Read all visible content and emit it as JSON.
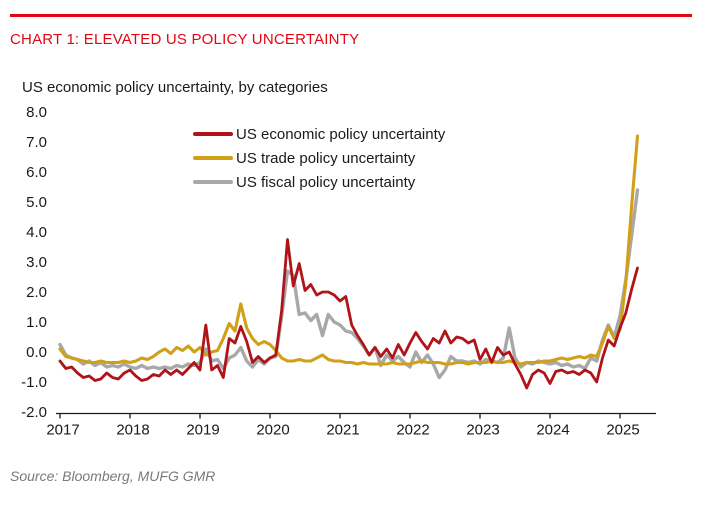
{
  "header": {
    "title": "CHART 1: ELEVATED US POLICY UNCERTAINTY"
  },
  "footer": {
    "source": "Source: Bloomberg, MUFG GMR"
  },
  "colors": {
    "brand_red": "#e30613",
    "series_economic": "#b01318",
    "series_trade": "#d1a019",
    "series_fiscal": "#a8a8a8",
    "axis": "#1a1a1a",
    "source_text": "#7a7a7a"
  },
  "chart_data": {
    "type": "line",
    "title": "US economic policy uncertainty, by categories",
    "xlabel": "",
    "ylabel": "",
    "x_unit": "monthly, Jan 2017 - Apr 2025",
    "x_tick_labels": [
      "2017",
      "2018",
      "2019",
      "2020",
      "2021",
      "2022",
      "2023",
      "2024",
      "2025"
    ],
    "y_ticks": [
      8.0,
      7.0,
      6.0,
      5.0,
      4.0,
      3.0,
      2.0,
      1.0,
      0.0,
      -1.0,
      -2.0
    ],
    "ylim": [
      -2.0,
      8.0
    ],
    "grid": false,
    "legend_position": "inside-top-left",
    "series": [
      {
        "name": "US economic policy uncertainty",
        "color": "#b01318",
        "values": [
          -0.3,
          -0.55,
          -0.5,
          -0.7,
          -0.85,
          -0.8,
          -0.95,
          -0.9,
          -0.7,
          -0.85,
          -0.9,
          -0.7,
          -0.6,
          -0.8,
          -0.95,
          -0.9,
          -0.75,
          -0.8,
          -0.6,
          -0.75,
          -0.6,
          -0.75,
          -0.55,
          -0.35,
          -0.6,
          0.9,
          -0.6,
          -0.45,
          -0.85,
          0.45,
          0.3,
          0.85,
          0.35,
          -0.35,
          -0.15,
          -0.35,
          -0.2,
          -0.1,
          1.4,
          3.75,
          2.2,
          2.95,
          2.05,
          2.25,
          1.9,
          2.0,
          2.0,
          1.9,
          1.7,
          1.85,
          0.9,
          0.55,
          0.25,
          -0.1,
          0.15,
          -0.15,
          0.1,
          -0.2,
          0.25,
          -0.1,
          0.3,
          0.65,
          0.35,
          0.1,
          0.45,
          0.3,
          0.7,
          0.3,
          0.5,
          0.45,
          0.3,
          0.4,
          -0.25,
          0.1,
          -0.35,
          0.15,
          -0.1,
          0.0,
          -0.4,
          -0.75,
          -1.2,
          -0.75,
          -0.6,
          -0.7,
          -1.05,
          -0.65,
          -0.6,
          -0.7,
          -0.65,
          -0.75,
          -0.6,
          -0.7,
          -1.0,
          -0.2,
          0.4,
          0.2,
          0.8,
          1.3,
          2.1,
          2.8
        ]
      },
      {
        "name": "US trade policy uncertainty",
        "color": "#d1a019",
        "values": [
          0.1,
          -0.15,
          -0.2,
          -0.25,
          -0.3,
          -0.35,
          -0.35,
          -0.3,
          -0.35,
          -0.35,
          -0.35,
          -0.3,
          -0.35,
          -0.3,
          -0.2,
          -0.25,
          -0.15,
          0.0,
          0.1,
          -0.05,
          0.15,
          0.05,
          0.2,
          0.0,
          0.15,
          -0.1,
          0.0,
          0.05,
          0.45,
          0.95,
          0.7,
          1.6,
          0.8,
          0.45,
          0.25,
          0.35,
          0.25,
          0.05,
          -0.2,
          -0.3,
          -0.3,
          -0.25,
          -0.3,
          -0.3,
          -0.2,
          -0.1,
          -0.25,
          -0.3,
          -0.3,
          -0.35,
          -0.35,
          -0.4,
          -0.35,
          -0.4,
          -0.4,
          -0.4,
          -0.4,
          -0.35,
          -0.4,
          -0.4,
          -0.4,
          -0.35,
          -0.3,
          -0.35,
          -0.35,
          -0.35,
          -0.4,
          -0.4,
          -0.35,
          -0.35,
          -0.4,
          -0.35,
          -0.35,
          -0.35,
          -0.3,
          -0.35,
          -0.35,
          -0.3,
          -0.35,
          -0.4,
          -0.35,
          -0.35,
          -0.35,
          -0.3,
          -0.3,
          -0.25,
          -0.2,
          -0.25,
          -0.2,
          -0.15,
          -0.2,
          -0.1,
          -0.15,
          0.3,
          0.85,
          0.45,
          0.75,
          2.3,
          4.9,
          7.2
        ]
      },
      {
        "name": "US fiscal policy uncertainty",
        "color": "#a8a8a8",
        "values": [
          0.25,
          -0.1,
          -0.2,
          -0.25,
          -0.4,
          -0.3,
          -0.45,
          -0.35,
          -0.5,
          -0.45,
          -0.5,
          -0.4,
          -0.5,
          -0.55,
          -0.45,
          -0.55,
          -0.5,
          -0.55,
          -0.5,
          -0.55,
          -0.45,
          -0.5,
          -0.4,
          -0.45,
          -0.35,
          0.1,
          -0.3,
          -0.25,
          -0.55,
          -0.2,
          -0.1,
          0.15,
          -0.3,
          -0.5,
          -0.25,
          -0.4,
          -0.2,
          -0.15,
          1.2,
          2.7,
          2.55,
          1.25,
          1.3,
          1.05,
          1.25,
          0.55,
          1.25,
          1.0,
          0.9,
          0.7,
          0.65,
          0.45,
          0.2,
          -0.1,
          0.15,
          -0.45,
          -0.1,
          -0.3,
          -0.15,
          -0.35,
          -0.5,
          0.0,
          -0.35,
          -0.1,
          -0.4,
          -0.85,
          -0.6,
          -0.15,
          -0.3,
          -0.3,
          -0.35,
          -0.3,
          -0.4,
          -0.25,
          -0.3,
          -0.35,
          -0.2,
          0.8,
          -0.2,
          -0.5,
          -0.35,
          -0.4,
          -0.3,
          -0.35,
          -0.4,
          -0.35,
          -0.45,
          -0.4,
          -0.5,
          -0.45,
          -0.55,
          -0.2,
          -0.3,
          0.4,
          0.9,
          0.5,
          1.2,
          2.4,
          3.9,
          5.4
        ]
      }
    ]
  }
}
